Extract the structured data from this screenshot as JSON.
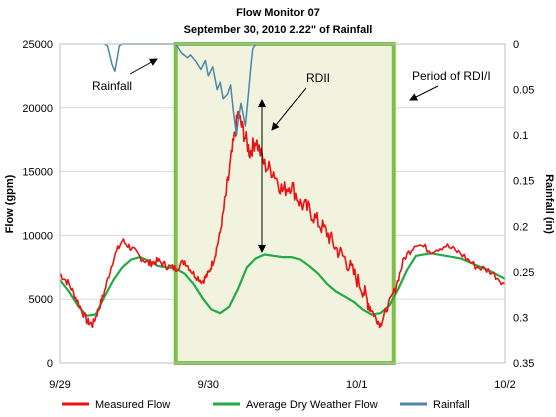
{
  "colors": {
    "measured": "#ee1111",
    "dry_weather": "#22aa44",
    "rainfall": "#4a86a8",
    "period_fill": "#f1f3df",
    "period_border": "#7cc04a",
    "grid": "#d9d9d9"
  },
  "chart_data": {
    "type": "line",
    "title": "Flow Monitor 07",
    "subtitle": "September 30, 2010 2.22\" of Rainfall",
    "ylabel": "Flow (gpm)",
    "y2label": "Rainfall (in)",
    "xlabel": "",
    "ylim": [
      0,
      25000
    ],
    "y2lim": [
      0.35,
      0
    ],
    "xlim": [
      0,
      3
    ],
    "grid": true,
    "legend": "bottom",
    "y_ticks": [
      "0",
      "5000",
      "10000",
      "15000",
      "20000",
      "25000"
    ],
    "y2_ticks": [
      "0",
      "0.05",
      "0.1",
      "0.15",
      "0.2",
      "0.25",
      "0.3",
      "0.35"
    ],
    "x_ticks": [
      {
        "x": 0,
        "label": "9/29"
      },
      {
        "x": 1,
        "label": "9/30"
      },
      {
        "x": 2,
        "label": "10/1"
      },
      {
        "x": 3,
        "label": "10/2"
      }
    ],
    "period": {
      "x_start": 0.78,
      "x_end": 2.25
    },
    "annotations": {
      "rainfall": "Rainfall",
      "rdii": "RDII",
      "period": "Period of RDI/I"
    },
    "series": [
      {
        "name": "Measured Flow",
        "key": "measured",
        "axis": "left",
        "x": [
          0,
          0.06,
          0.12,
          0.18,
          0.22,
          0.26,
          0.3,
          0.36,
          0.42,
          0.48,
          0.54,
          0.6,
          0.66,
          0.72,
          0.78,
          0.84,
          0.9,
          0.96,
          1.0,
          1.04,
          1.08,
          1.12,
          1.16,
          1.2,
          1.24,
          1.28,
          1.32,
          1.38,
          1.44,
          1.5,
          1.56,
          1.62,
          1.68,
          1.74,
          1.8,
          1.86,
          1.92,
          1.98,
          2.04,
          2.08,
          2.12,
          2.16,
          2.2,
          2.26,
          2.32,
          2.4,
          2.5,
          2.6,
          2.7,
          2.8,
          2.9,
          3.0
        ],
        "y": [
          7000,
          6200,
          4800,
          3300,
          3000,
          4200,
          5600,
          8200,
          9600,
          9000,
          8300,
          7800,
          8000,
          7600,
          7400,
          8000,
          7000,
          6400,
          7000,
          8200,
          10200,
          13200,
          16500,
          19500,
          18000,
          16500,
          17500,
          15500,
          15000,
          13500,
          14000,
          12500,
          12000,
          11000,
          10200,
          9000,
          8200,
          7000,
          5800,
          4700,
          3700,
          3000,
          4200,
          5800,
          8200,
          9400,
          8800,
          9200,
          8600,
          7600,
          7200,
          6200
        ]
      },
      {
        "name": "Average Dry Weather Flow",
        "key": "dry_weather",
        "axis": "left",
        "x": [
          0,
          0.06,
          0.12,
          0.18,
          0.24,
          0.3,
          0.36,
          0.42,
          0.48,
          0.54,
          0.6,
          0.66,
          0.72,
          0.78,
          0.84,
          0.9,
          0.96,
          1.02,
          1.08,
          1.14,
          1.2,
          1.26,
          1.32,
          1.38,
          1.44,
          1.5,
          1.56,
          1.62,
          1.68,
          1.74,
          1.8,
          1.86,
          1.92,
          1.98,
          2.04,
          2.1,
          2.16,
          2.22,
          2.28,
          2.34,
          2.4,
          2.5,
          2.6,
          2.7,
          2.8,
          2.9,
          3.0
        ],
        "y": [
          6500,
          5600,
          4500,
          3700,
          3800,
          5200,
          6500,
          7500,
          8100,
          8300,
          8000,
          7600,
          7500,
          7400,
          7000,
          6200,
          5100,
          4200,
          3900,
          4400,
          5800,
          7500,
          8200,
          8500,
          8400,
          8300,
          8300,
          8100,
          7600,
          7000,
          6200,
          5600,
          5200,
          4800,
          4200,
          3800,
          3900,
          4500,
          5800,
          7300,
          8400,
          8600,
          8400,
          8200,
          7700,
          7200,
          6600
        ]
      },
      {
        "name": "Rainfall",
        "key": "rainfall",
        "axis": "right",
        "x": [
          0.3,
          0.32,
          0.34,
          0.35,
          0.37,
          0.39,
          0.4,
          0.42,
          0.78,
          0.8,
          0.82,
          0.86,
          0.88,
          0.92,
          0.95,
          0.98,
          1.0,
          1.03,
          1.06,
          1.08,
          1.1,
          1.13,
          1.15,
          1.17,
          1.19,
          1.2,
          1.22,
          1.25,
          1.27,
          1.29,
          1.3,
          1.32
        ],
        "y": [
          0,
          0.002,
          0.015,
          0.022,
          0.03,
          0.012,
          0.002,
          0,
          0,
          0.005,
          0.01,
          0.015,
          0.012,
          0.02,
          0.028,
          0.018,
          0.035,
          0.025,
          0.05,
          0.042,
          0.06,
          0.055,
          0.045,
          0.075,
          0.1,
          0.085,
          0.065,
          0.09,
          0.055,
          0.02,
          0.005,
          0
        ]
      }
    ]
  }
}
